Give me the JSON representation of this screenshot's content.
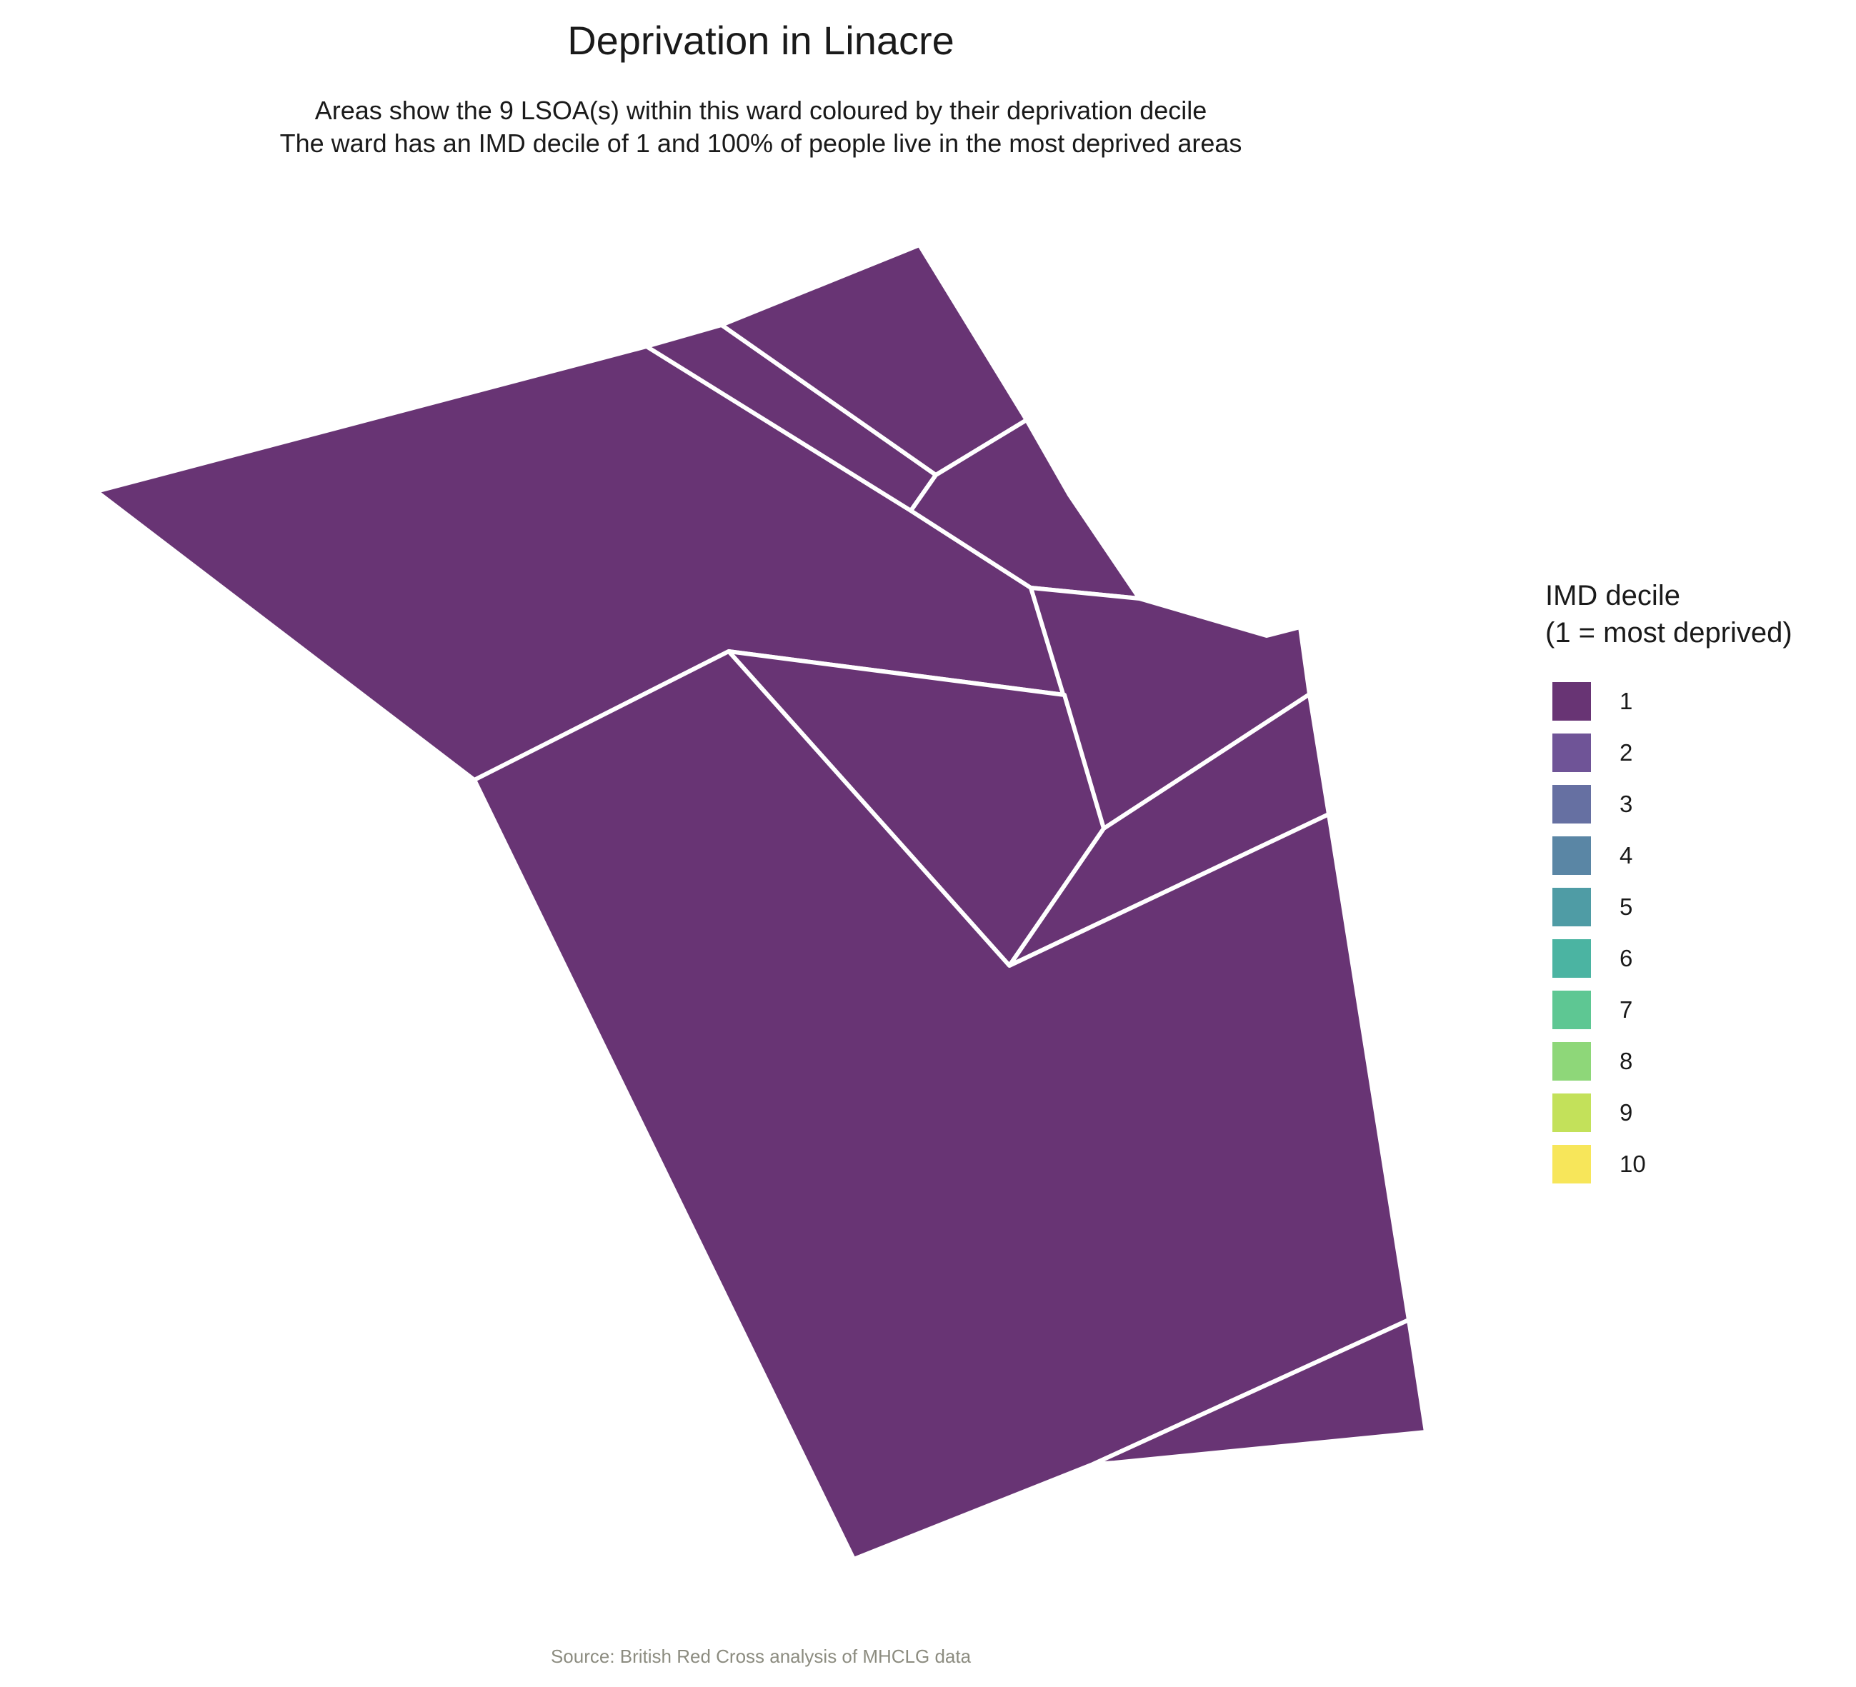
{
  "title": "Deprivation in Linacre",
  "subtitle_line1": "Areas show the 9 LSOA(s) within this ward coloured by their deprivation decile",
  "subtitle_line2": "The ward has an IMD decile of 1 and 100% of people live in the most deprived areas",
  "legend": {
    "title_line1": "IMD decile",
    "title_line2": "(1 = most deprived)",
    "items": [
      {
        "label": "1",
        "color": "#683474"
      },
      {
        "label": "2",
        "color": "#6f5497"
      },
      {
        "label": "3",
        "color": "#6670a2"
      },
      {
        "label": "4",
        "color": "#5a86a5"
      },
      {
        "label": "5",
        "color": "#4f9ca5"
      },
      {
        "label": "6",
        "color": "#4bb4a2"
      },
      {
        "label": "7",
        "color": "#5ec793"
      },
      {
        "label": "8",
        "color": "#8ed779"
      },
      {
        "label": "9",
        "color": "#c3e15a"
      },
      {
        "label": "10",
        "color": "#f7e65a"
      }
    ]
  },
  "map": {
    "areas_count": 9,
    "area_decile": 1,
    "fill_color": "#683474",
    "border_color": "#ffffff"
  },
  "caption": "Source: British Red Cross analysis of MHCLG data"
}
